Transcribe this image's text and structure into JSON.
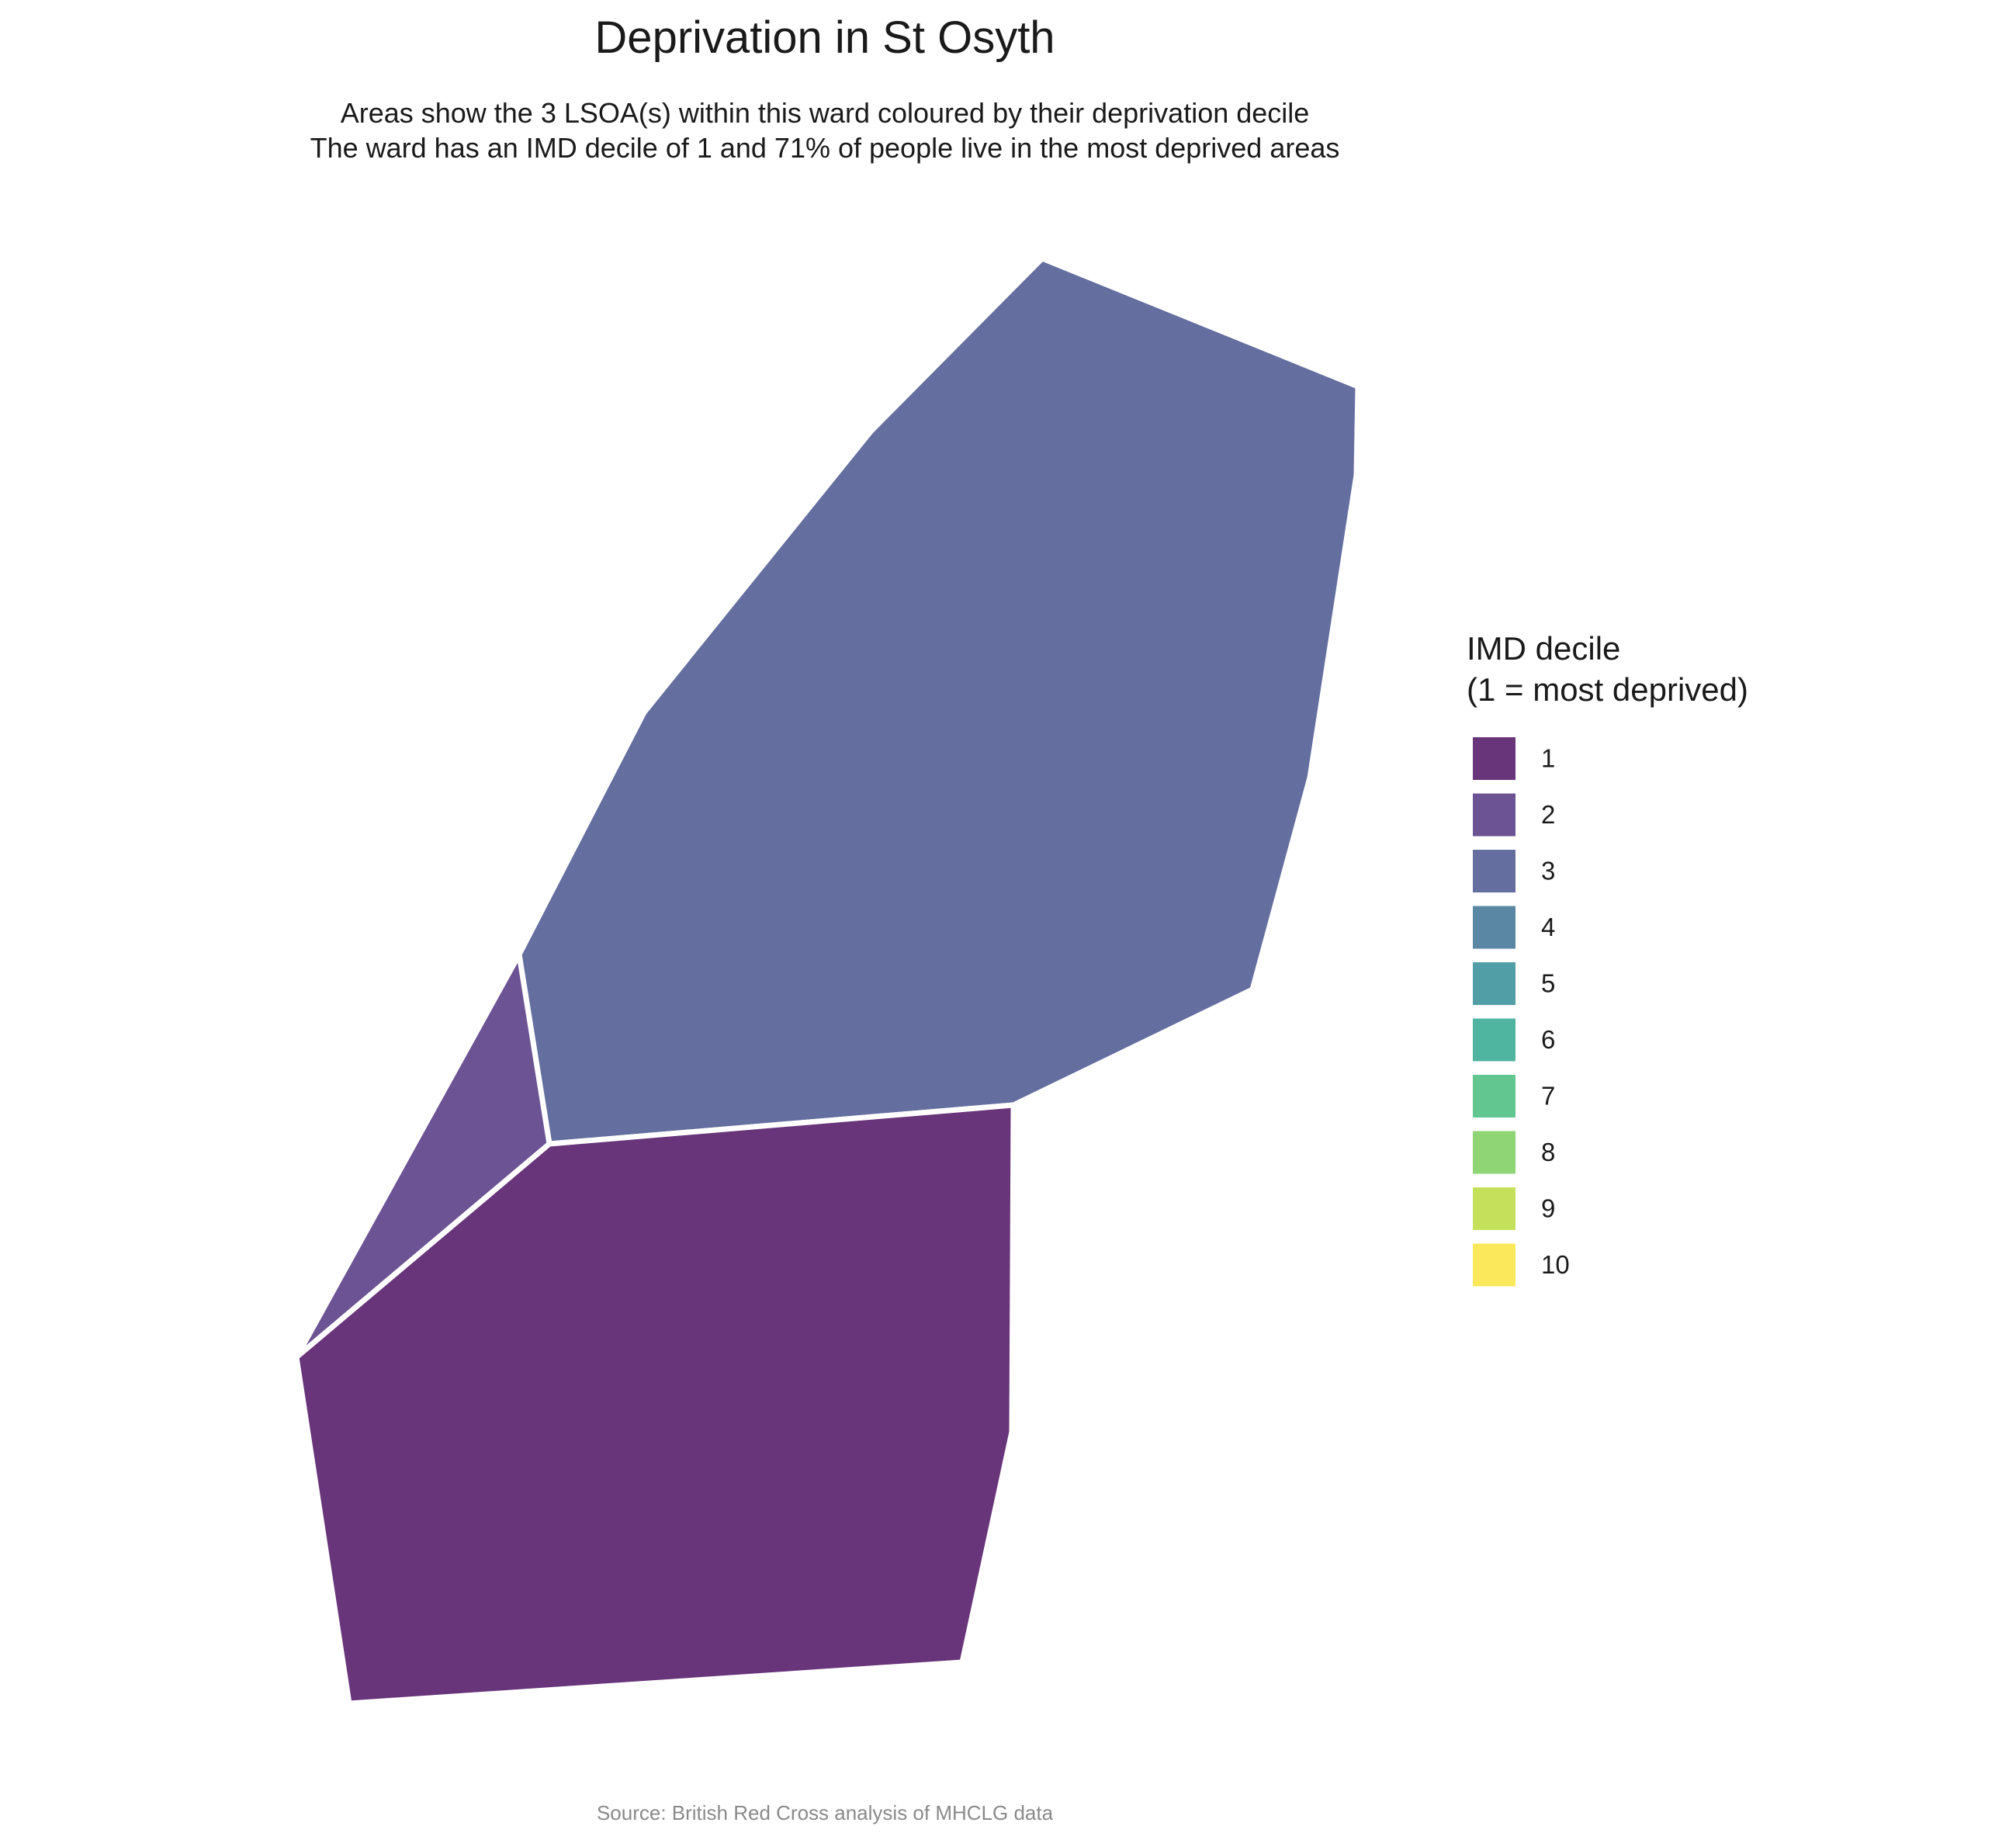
{
  "title": "Deprivation in St Osyth",
  "subtitle": {
    "line1": "Areas show the 3 LSOA(s) within this ward coloured by their deprivation decile",
    "line2": "The ward has an IMD decile of 1 and 71% of people live in the most deprived areas"
  },
  "legend": {
    "title_line1": "IMD decile",
    "title_line2": "(1 = most deprived)",
    "items": [
      {
        "label": "1",
        "color": "#68347a"
      },
      {
        "label": "2",
        "color": "#6c5393"
      },
      {
        "label": "3",
        "color": "#646e9f"
      },
      {
        "label": "4",
        "color": "#5a87a3"
      },
      {
        "label": "5",
        "color": "#529ea6"
      },
      {
        "label": "6",
        "color": "#50b5a0"
      },
      {
        "label": "7",
        "color": "#62c691"
      },
      {
        "label": "8",
        "color": "#8fd575"
      },
      {
        "label": "9",
        "color": "#c5e15b"
      },
      {
        "label": "10",
        "color": "#fbe85b"
      }
    ]
  },
  "map": {
    "areas": [
      {
        "name": "lsoa-decile-3",
        "decile": 3,
        "color": "#646e9f"
      },
      {
        "name": "lsoa-decile-2",
        "decile": 2,
        "color": "#6c5393"
      },
      {
        "name": "lsoa-decile-1",
        "decile": 1,
        "color": "#68347a"
      }
    ]
  },
  "caption": "Source: British Red Cross analysis of MHCLG data"
}
